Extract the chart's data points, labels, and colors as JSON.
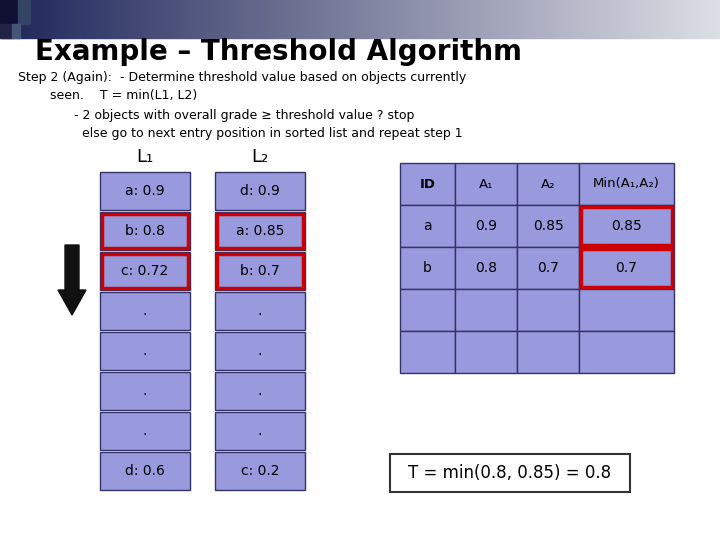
{
  "title": "Example – Threshold Algorithm",
  "bg_color": "#ffffff",
  "cell_bg": "#9999dd",
  "red_border": "#cc0000",
  "dark_border": "#333366",
  "L1_cells": [
    "a: 0.9",
    "b: 0.8",
    "c: 0.72",
    ".",
    ".",
    ".",
    ".",
    "d: 0.6"
  ],
  "L2_cells": [
    "d: 0.9",
    "a: 0.85",
    "b: 0.7",
    ".",
    ".",
    ".",
    ".",
    "c: 0.2"
  ],
  "L1_highlighted": [
    1,
    2
  ],
  "L2_highlighted": [
    1,
    2
  ],
  "table_headers": [
    "ID",
    "A₁",
    "A₂",
    "Min(A₁,A₂)"
  ],
  "table_rows": [
    [
      "a",
      "0.9",
      "0.85",
      "0.85"
    ],
    [
      "b",
      "0.8",
      "0.7",
      "0.7"
    ],
    [
      "",
      "",
      "",
      ""
    ],
    [
      "",
      "",
      "",
      ""
    ]
  ],
  "table_highlighted_col3": [
    0,
    1
  ],
  "formula_text": "T = min(0.8, 0.85) = 0.8",
  "step_lines": [
    [
      "Step 2 (Again): - Determine threshold value based on objects currently",
      0.04
    ],
    [
      "        seen.   T = min(L1, L2)",
      0.04
    ],
    [
      "              - 2 objects with overall grade ≥ threshold value ? stop",
      0.04
    ],
    [
      "                else go to next entry position in sorted list and repeat step 1",
      0.04
    ]
  ]
}
